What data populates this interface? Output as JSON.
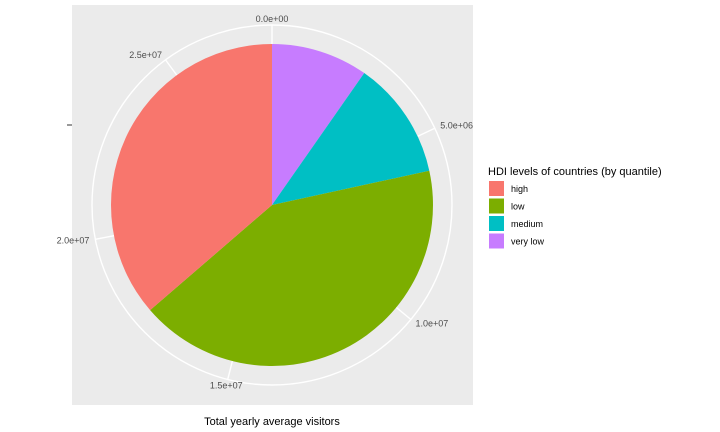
{
  "chart_data": {
    "type": "pie",
    "xlabel": "Total yearly average visitors",
    "legend_title": "HDI levels of countries (by quantile)",
    "legend_position": "right",
    "grid": true,
    "tick_labels": [
      "0.0e+00",
      "5.0e+06",
      "1.0e+07",
      "1.5e+07",
      "2.0e+07",
      "2.5e+07"
    ],
    "ticks": [
      0,
      5000000,
      10000000,
      15000000,
      20000000,
      25000000
    ],
    "total": 27800000,
    "slices": [
      {
        "label": "very low",
        "value": 2700000,
        "color": "#C77CFF"
      },
      {
        "label": "medium",
        "value": 3300000,
        "color": "#00BFC4"
      },
      {
        "label": "low",
        "value": 11700000,
        "color": "#7CAE00"
      },
      {
        "label": "high",
        "value": 10100000,
        "color": "#F8766D"
      }
    ],
    "legend": [
      {
        "label": "high",
        "color": "#F8766D"
      },
      {
        "label": "low",
        "color": "#7CAE00"
      },
      {
        "label": "medium",
        "color": "#00BFC4"
      },
      {
        "label": "very low",
        "color": "#C77CFF"
      }
    ]
  }
}
